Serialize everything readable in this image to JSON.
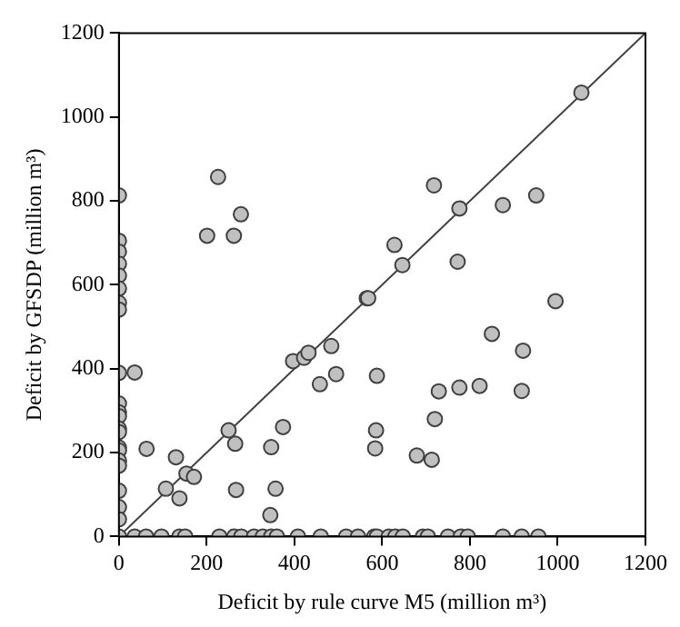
{
  "chart_data": {
    "type": "scatter",
    "xlabel": "Deficit by rule curve M5 (million m³)",
    "ylabel": "Deficit by GFSDP (million m³)",
    "xlim": [
      0,
      1200
    ],
    "ylim": [
      0,
      1200
    ],
    "xticks": [
      0,
      200,
      400,
      600,
      800,
      1000,
      1200
    ],
    "yticks": [
      0,
      200,
      400,
      600,
      800,
      1000,
      1200
    ],
    "grid": false,
    "legend": false,
    "series": [
      {
        "type": "scatter",
        "marker": "circle",
        "color": "#c0c0c0",
        "x": [
          0,
          0,
          0,
          0,
          0,
          0,
          0,
          0,
          0,
          0,
          0,
          0,
          0,
          0,
          0,
          0,
          0,
          0,
          0,
          0,
          0,
          0,
          36,
          226,
          201,
          262,
          278,
          565,
          1054,
          718,
          776,
          875,
          951,
          628,
          646,
          772,
          995,
          568,
          397,
          422,
          432,
          484,
          495,
          458,
          250,
          265,
          374,
          347,
          63,
          130,
          154,
          171,
          107,
          138,
          267,
          357,
          345,
          588,
          586,
          584,
          850,
          921,
          729,
          776,
          822,
          918,
          720,
          679,
          713,
          36,
          62,
          97,
          138,
          151,
          229,
          263,
          279,
          308,
          328,
          347,
          360,
          408,
          460,
          518,
          545,
          582,
          588,
          615,
          630,
          647,
          693,
          704,
          750,
          779,
          795,
          875,
          918,
          956
        ],
        "values": [
          813,
          705,
          679,
          650,
          622,
          591,
          557,
          541,
          390,
          317,
          296,
          287,
          257,
          249,
          212,
          205,
          181,
          169,
          109,
          70,
          41,
          0,
          391,
          857,
          717,
          717,
          768,
          568,
          1058,
          837,
          782,
          790,
          813,
          695,
          647,
          655,
          561,
          568,
          418,
          426,
          438,
          454,
          387,
          363,
          253,
          221,
          261,
          213,
          209,
          189,
          150,
          142,
          114,
          91,
          111,
          114,
          51,
          383,
          253,
          210,
          483,
          443,
          346,
          355,
          359,
          347,
          280,
          193,
          183,
          0,
          0,
          0,
          0,
          0,
          0,
          0,
          0,
          0,
          0,
          0,
          0,
          0,
          0,
          0,
          0,
          0,
          0,
          0,
          0,
          0,
          0,
          0,
          0,
          0,
          0,
          0,
          0,
          0
        ]
      },
      {
        "type": "line",
        "marker": "none",
        "color": "#404040",
        "x": [
          0,
          1200
        ],
        "values": [
          0,
          1200
        ]
      }
    ]
  }
}
